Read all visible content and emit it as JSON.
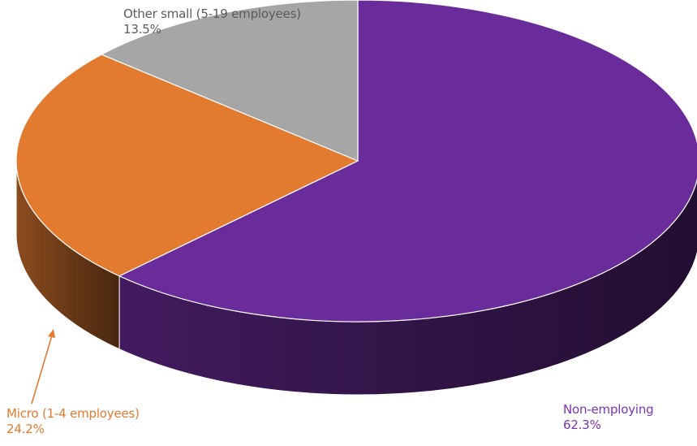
{
  "chart_data": {
    "type": "pie",
    "style": "3d",
    "slices": [
      {
        "label": "Non-employing",
        "value": 62.3,
        "value_label": "62.3%",
        "color": "#6a2c9a"
      },
      {
        "label": "Micro (1-4 employees)",
        "value": 24.2,
        "value_label": "24.2%",
        "color": "#e27a30"
      },
      {
        "label": "Other small (5-19 employees)",
        "value": 13.5,
        "value_label": "13.5%",
        "color": "#a6a6a6"
      }
    ],
    "legend": "none",
    "data_labels": "outside"
  }
}
